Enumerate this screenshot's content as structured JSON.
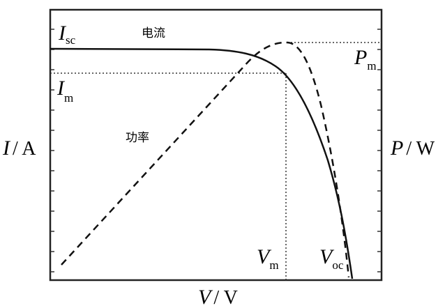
{
  "labels": {
    "isc": {
      "main": "I",
      "sub": "sc"
    },
    "current": "电流",
    "pm": {
      "main": "P",
      "sub": "m"
    },
    "im": {
      "main": "I",
      "sub": "m"
    },
    "power": "功率",
    "y_left": {
      "symbol": "I",
      "unit": "/ A"
    },
    "y_right": {
      "symbol": "P",
      "unit": "/ W"
    },
    "x_axis": {
      "symbol": "V",
      "unit": "/ V"
    },
    "vm": {
      "main": "V",
      "sub": "m"
    },
    "voc": {
      "main": "V",
      "sub": "oc"
    }
  }
}
